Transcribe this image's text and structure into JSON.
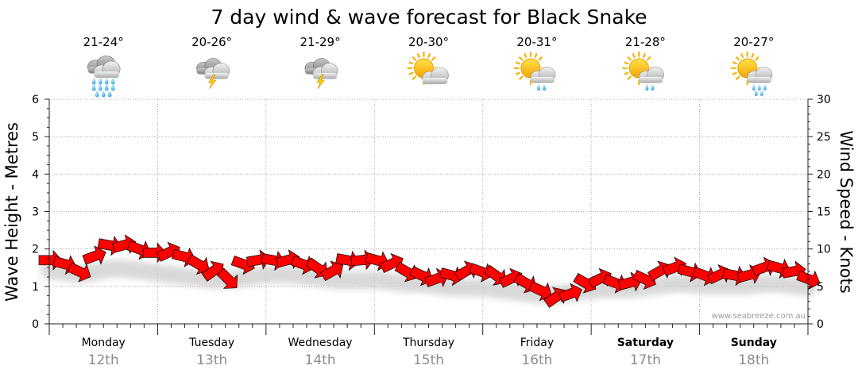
{
  "chart_data": {
    "type": "line",
    "title": "7 day wind & wave forecast for Black Snake",
    "ylabel_left": "Wave Height - Metres",
    "ylabel_right": "Wind Speed - Knots",
    "ylim_left": [
      0,
      6
    ],
    "ylim_right": [
      0,
      30
    ],
    "yticks_left": [
      "0",
      "1",
      "2",
      "3",
      "4",
      "5",
      "6"
    ],
    "yticks_right": [
      "0",
      "5",
      "10",
      "15",
      "20",
      "25",
      "30"
    ],
    "days": [
      {
        "name": "Monday",
        "date": "12th",
        "temp": "21-24°",
        "icon": "rain-icon",
        "bold": false
      },
      {
        "name": "Tuesday",
        "date": "13th",
        "temp": "20-26°",
        "icon": "thunderstorm-icon",
        "bold": false
      },
      {
        "name": "Wednesday",
        "date": "14th",
        "temp": "21-29°",
        "icon": "thunderstorm-icon",
        "bold": false
      },
      {
        "name": "Thursday",
        "date": "15th",
        "temp": "20-30°",
        "icon": "partly-cloudy-icon",
        "bold": false
      },
      {
        "name": "Friday",
        "date": "16th",
        "temp": "20-31°",
        "icon": "sun-shower-icon",
        "bold": false
      },
      {
        "name": "Saturday",
        "date": "17th",
        "temp": "21-28°",
        "icon": "sun-shower-icon",
        "bold": true
      },
      {
        "name": "Sunday",
        "date": "18th",
        "temp": "20-27°",
        "icon": "sun-rain-icon",
        "bold": true
      }
    ],
    "wind_series": {
      "name": "Wind Speed (knots)",
      "color": "#ff0000",
      "values": [
        8.5,
        8,
        7,
        9,
        10.5,
        10.5,
        10,
        9.5,
        9.5,
        9,
        8,
        7,
        6,
        8,
        8.5,
        8.5,
        8.5,
        8,
        7.5,
        7,
        8.5,
        8.5,
        8.5,
        8,
        7,
        6.5,
        6,
        6.5,
        7,
        7,
        6.5,
        6,
        5.5,
        4.5,
        3.5,
        4,
        5.5,
        6,
        5.5,
        5.5,
        6,
        7,
        7.5,
        7,
        6.5,
        6.5,
        6.5,
        6.5,
        7.5,
        7.5,
        7,
        6
      ]
    },
    "wave_series": {
      "name": "Wave Height (m)",
      "color": "#cccccc",
      "values": [
        1.55,
        1.5,
        1.45,
        1.5,
        1.6,
        1.6,
        1.55,
        1.5,
        1.45,
        1.4,
        1.35,
        1.3,
        1.3,
        1.35,
        1.4,
        1.45,
        1.45,
        1.4,
        1.35,
        1.3,
        1.3,
        1.3,
        1.3,
        1.25,
        1.2,
        1.2,
        1.15,
        1.1,
        1.1,
        1.1,
        1.05,
        1.0,
        0.95,
        0.9,
        0.9,
        0.95,
        1.0,
        1.05,
        1.05,
        1.05,
        1.1,
        1.15,
        1.2,
        1.2,
        1.15,
        1.15,
        1.15,
        1.15,
        1.2,
        1.2,
        1.15,
        1.1
      ]
    }
  },
  "watermark": "www.seabreeze.com.au"
}
